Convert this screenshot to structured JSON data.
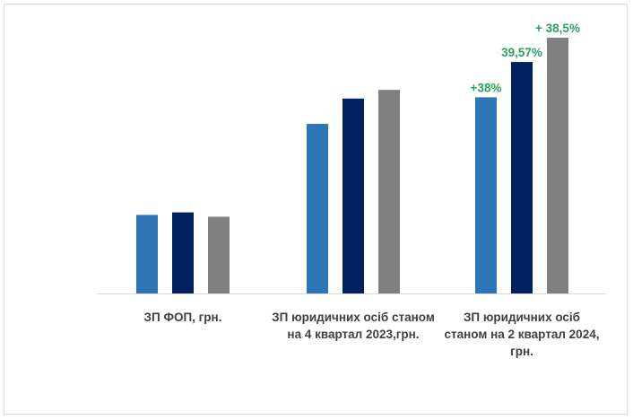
{
  "chart_data": {
    "type": "bar",
    "title": "",
    "xlabel": "",
    "ylabel": "",
    "ylim": [
      0,
      100
    ],
    "categories": [
      [
        "ЗП ФОП, грн."
      ],
      [
        "ЗП юридичних осіб станом",
        "на 4 квартал 2023,грн."
      ],
      [
        "ЗП юридичних осіб",
        "станом на 2 квартал 2024,",
        "грн."
      ]
    ],
    "series": [
      {
        "name": "series-1",
        "color": "#2e75b6",
        "values": [
          30.7,
          66.3,
          76.7
        ]
      },
      {
        "name": "series-2",
        "color": "#002060",
        "values": [
          31.7,
          76.2,
          90.5
        ]
      },
      {
        "name": "series-3",
        "color": "#808080",
        "values": [
          30.0,
          79.6,
          100.0
        ]
      }
    ],
    "data_labels": [
      {
        "category": 2,
        "series": 0,
        "text": "+38%"
      },
      {
        "category": 2,
        "series": 1,
        "text": "39,57%"
      },
      {
        "category": 2,
        "series": 2,
        "text": "+ 38,5%"
      }
    ],
    "label_color": "#2ca25f",
    "grid": false,
    "legend": "none"
  }
}
